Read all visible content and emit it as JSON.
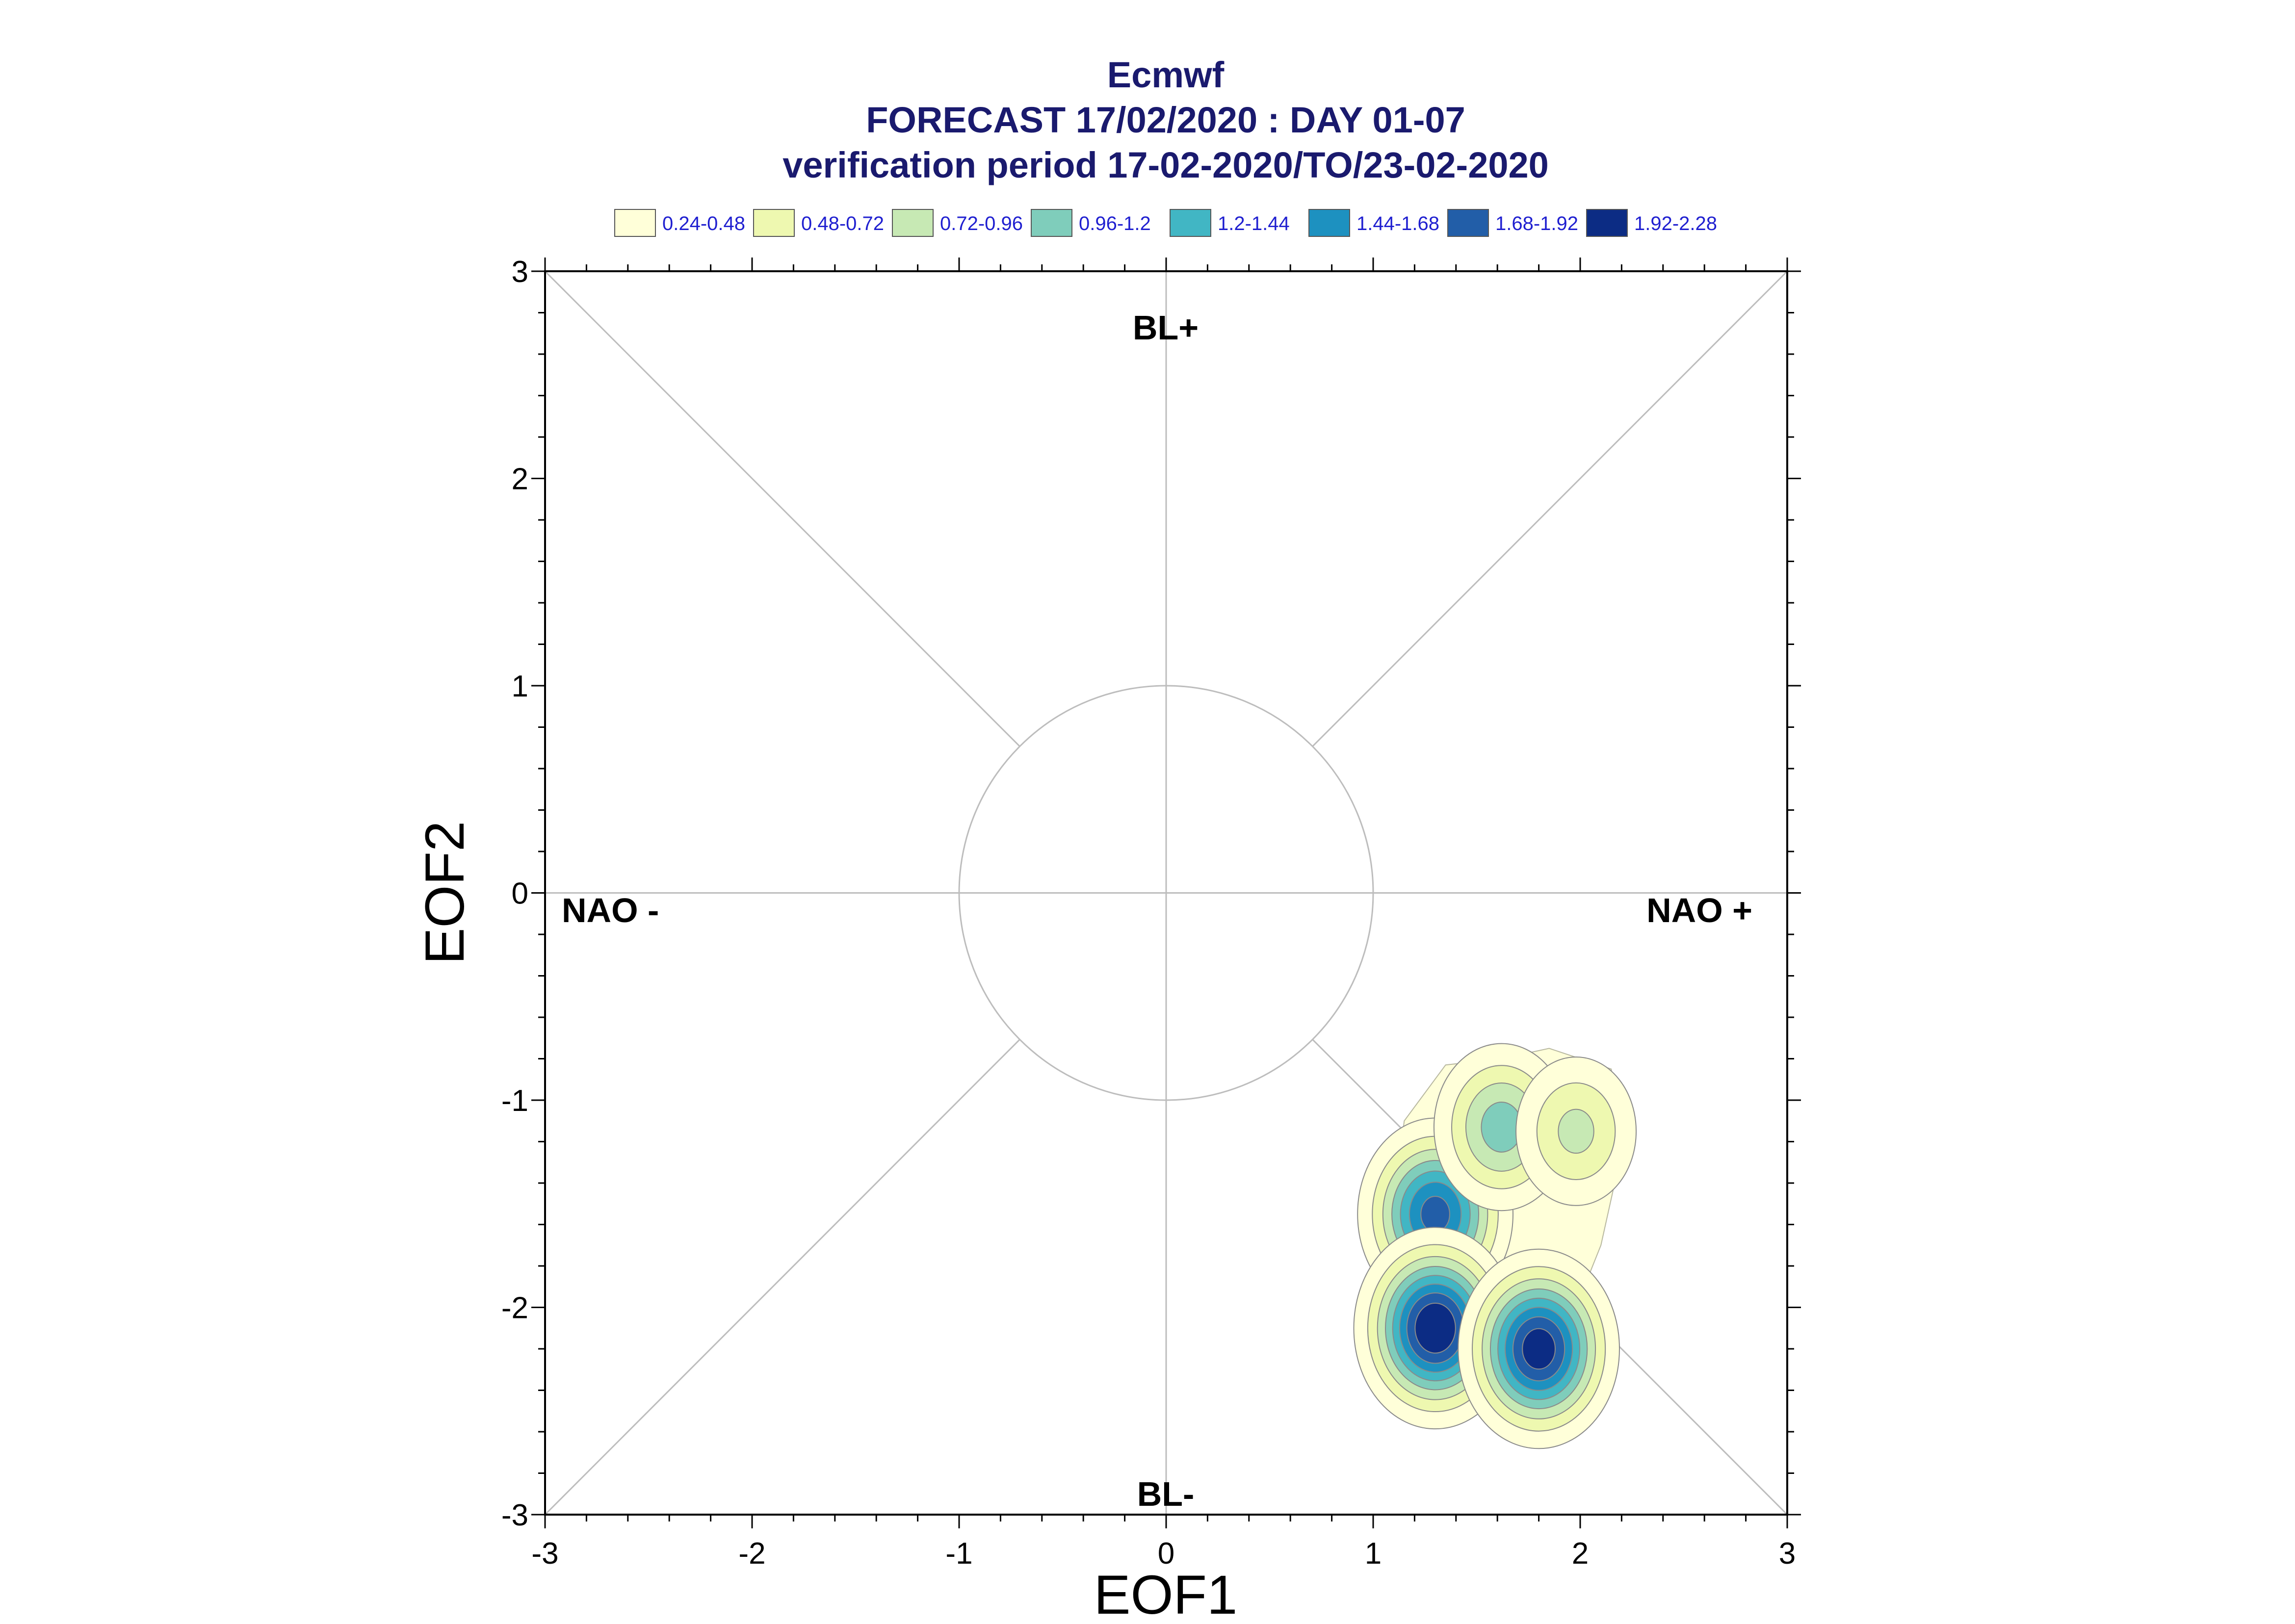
{
  "chart_data": {
    "type": "heatmap",
    "title_lines": [
      "Ecmwf",
      "FORECAST 17/02/2020 : DAY 01-07",
      "verification period 17-02-2020/TO/23-02-2020"
    ],
    "xlabel": "EOF1",
    "ylabel": "EOF2",
    "xlim": [
      -3,
      3
    ],
    "ylim": [
      -3,
      3
    ],
    "x_ticks": [
      "-3",
      "-2",
      "-1",
      "0",
      "1",
      "2",
      "3"
    ],
    "y_ticks": [
      "-3",
      "-2",
      "-1",
      "0",
      "1",
      "2",
      "3"
    ],
    "grid": false,
    "legend_position": "top",
    "regime_labels": {
      "top": "BL+",
      "bottom": "BL-",
      "left": "NAO -",
      "right": "NAO +"
    },
    "reference_circle_radius": 1,
    "legend": [
      {
        "label": "0.24-0.48",
        "color": "#ffffd9"
      },
      {
        "label": "0.48-0.72",
        "color": "#eef8b0"
      },
      {
        "label": "0.72-0.96",
        "color": "#c7e9b4"
      },
      {
        "label": "0.96-1.2",
        "color": "#7fcdbb"
      },
      {
        "label": "1.2-1.44",
        "color": "#41b6c4"
      },
      {
        "label": "1.44-1.68",
        "color": "#1d91c0"
      },
      {
        "label": "1.68-1.92",
        "color": "#225ea8"
      },
      {
        "label": "1.92-2.28",
        "color": "#0c2c84"
      }
    ],
    "density_centers": [
      {
        "x": 1.3,
        "y": -1.55,
        "peak": 1.8
      },
      {
        "x": 1.3,
        "y": -2.1,
        "peak": 2.2
      },
      {
        "x": 1.8,
        "y": -2.2,
        "peak": 2.1
      },
      {
        "x": 1.62,
        "y": -1.13,
        "peak": 1.1
      },
      {
        "x": 1.98,
        "y": -1.15,
        "peak": 0.8
      }
    ]
  }
}
